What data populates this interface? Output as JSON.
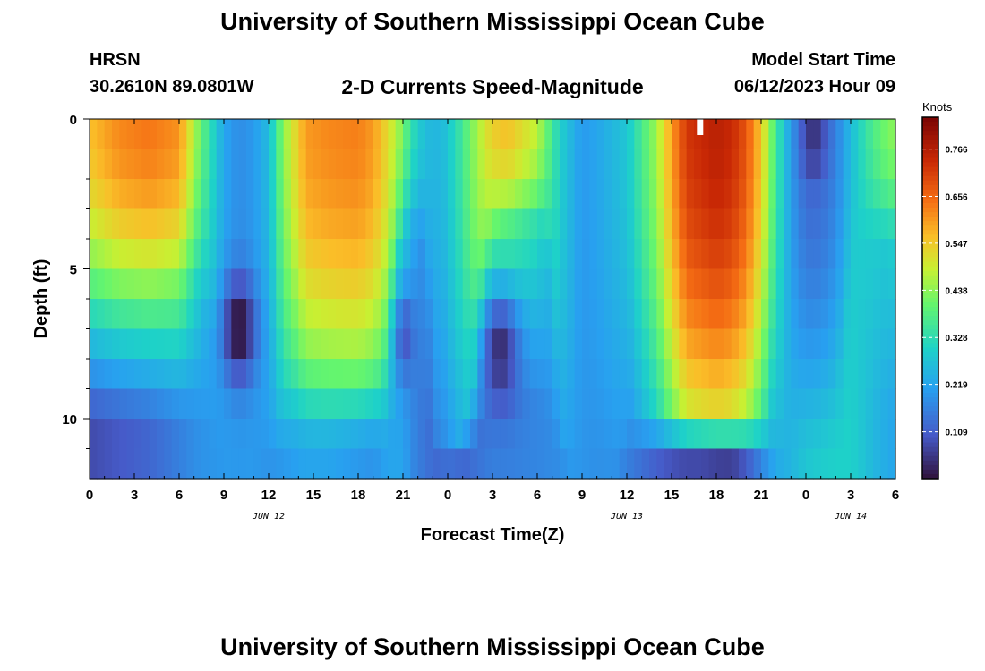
{
  "header": {
    "title": "University of Southern Mississippi Ocean Cube",
    "station": "HRSN",
    "coords": "30.2610N  89.0801W",
    "subtitle": "2-D Currents Speed-Magnitude",
    "model_start_label": "Model Start Time",
    "model_start_value": "06/12/2023 Hour 09"
  },
  "footer": {
    "title": "University of Southern Mississippi Ocean Cube"
  },
  "chart_data": {
    "type": "heatmap",
    "title": "2-D Currents Speed-Magnitude",
    "xlabel": "Forecast Time(Z)",
    "ylabel": "Depth (ft)",
    "x_range_hours": [
      0,
      54
    ],
    "x_ticks": [
      {
        "h": 0,
        "label": "0"
      },
      {
        "h": 3,
        "label": "3"
      },
      {
        "h": 6,
        "label": "6"
      },
      {
        "h": 9,
        "label": "9"
      },
      {
        "h": 12,
        "label": "12"
      },
      {
        "h": 15,
        "label": "15"
      },
      {
        "h": 18,
        "label": "18"
      },
      {
        "h": 21,
        "label": "21"
      },
      {
        "h": 24,
        "label": "0"
      },
      {
        "h": 27,
        "label": "3"
      },
      {
        "h": 30,
        "label": "6"
      },
      {
        "h": 33,
        "label": "9"
      },
      {
        "h": 36,
        "label": "12"
      },
      {
        "h": 39,
        "label": "15"
      },
      {
        "h": 42,
        "label": "18"
      },
      {
        "h": 45,
        "label": "21"
      },
      {
        "h": 48,
        "label": "0"
      },
      {
        "h": 51,
        "label": "3"
      },
      {
        "h": 54,
        "label": "6"
      }
    ],
    "date_labels": [
      {
        "h": 12,
        "label": "JUN 12"
      },
      {
        "h": 36,
        "label": "JUN 13"
      },
      {
        "h": 51,
        "label": "JUN 14"
      }
    ],
    "y_range_ft": [
      0,
      12
    ],
    "y_ticks": [
      {
        "v": 0,
        "label": "0"
      },
      {
        "v": 5,
        "label": "5"
      },
      {
        "v": 10,
        "label": "10"
      }
    ],
    "colorbar": {
      "unit": "Knots",
      "min": 0.0,
      "max": 0.84,
      "ticks": [
        0.766,
        0.656,
        0.547,
        0.438,
        0.328,
        0.219,
        0.109
      ],
      "tick_labels": [
        "0.766",
        "0.656",
        "0.547",
        "0.438",
        "0.328",
        "0.219",
        "0.109"
      ]
    },
    "speed_series": {
      "hours": [
        0,
        2,
        4,
        6,
        7.5,
        9,
        10,
        11,
        12,
        13,
        14.5,
        16,
        18,
        19,
        20,
        21,
        21.5,
        22.5,
        23.5,
        24,
        25,
        26,
        27,
        28,
        30,
        31.5,
        33,
        34,
        36,
        38,
        39,
        40,
        42,
        43,
        44,
        45,
        46,
        47,
        48,
        49,
        50,
        51,
        52,
        53,
        54
      ],
      "surface": [
        0.56,
        0.62,
        0.64,
        0.61,
        0.4,
        0.22,
        0.18,
        0.2,
        0.26,
        0.44,
        0.6,
        0.62,
        0.63,
        0.6,
        0.52,
        0.42,
        0.34,
        0.26,
        0.25,
        0.28,
        0.36,
        0.46,
        0.54,
        0.56,
        0.48,
        0.3,
        0.2,
        0.22,
        0.28,
        0.45,
        0.6,
        0.72,
        0.76,
        0.74,
        0.68,
        0.55,
        0.36,
        0.2,
        0.12,
        0.12,
        0.16,
        0.26,
        0.34,
        0.4,
        0.44
      ],
      "bottom": [
        0.08,
        0.1,
        0.12,
        0.16,
        0.19,
        0.2,
        0.2,
        0.2,
        0.19,
        0.2,
        0.22,
        0.22,
        0.2,
        0.19,
        0.22,
        0.22,
        0.18,
        0.14,
        0.12,
        0.12,
        0.12,
        0.14,
        0.16,
        0.16,
        0.17,
        0.18,
        0.19,
        0.17,
        0.16,
        0.11,
        0.09,
        0.08,
        0.1,
        0.12,
        0.16,
        0.2,
        0.24,
        0.25,
        0.28,
        0.29,
        0.3,
        0.3,
        0.27,
        0.24,
        0.22
      ]
    },
    "depth_penetration": [
      {
        "center": 4,
        "sigma": 3.2,
        "depth": 5.5
      },
      {
        "center": 10.5,
        "sigma": 1.6,
        "depth": 10
      },
      {
        "center": 17,
        "sigma": 2.6,
        "depth": 8.2
      },
      {
        "center": 21.5,
        "sigma": 0.9,
        "depth": 3.5
      },
      {
        "center": 24.8,
        "sigma": 1.4,
        "depth": 11
      },
      {
        "center": 28,
        "sigma": 2.0,
        "depth": 3.5
      },
      {
        "center": 33,
        "sigma": 1.2,
        "depth": 11.5
      },
      {
        "center": 42,
        "sigma": 2.6,
        "depth": 9.8
      },
      {
        "center": 48.5,
        "sigma": 1.5,
        "depth": 9.0
      },
      {
        "center": 53,
        "sigma": 1.5,
        "depth": 4.0
      }
    ],
    "mid_depth_lows": [
      {
        "h": 10,
        "depth": 7.0,
        "sh": 1.2,
        "sd": 1.7,
        "amp": 0.2
      },
      {
        "h": 21,
        "depth": 7.2,
        "sh": 0.7,
        "sd": 1.6,
        "amp": 0.14
      },
      {
        "h": 27.5,
        "depth": 7.4,
        "sh": 1.3,
        "sd": 1.9,
        "amp": 0.2
      },
      {
        "h": 48.5,
        "depth": 0.8,
        "sh": 0.9,
        "sd": 1.0,
        "amp": 0.08
      },
      {
        "h": 43.5,
        "depth": 11.6,
        "sh": 2.0,
        "sd": 0.6,
        "amp": 0.06
      }
    ]
  }
}
